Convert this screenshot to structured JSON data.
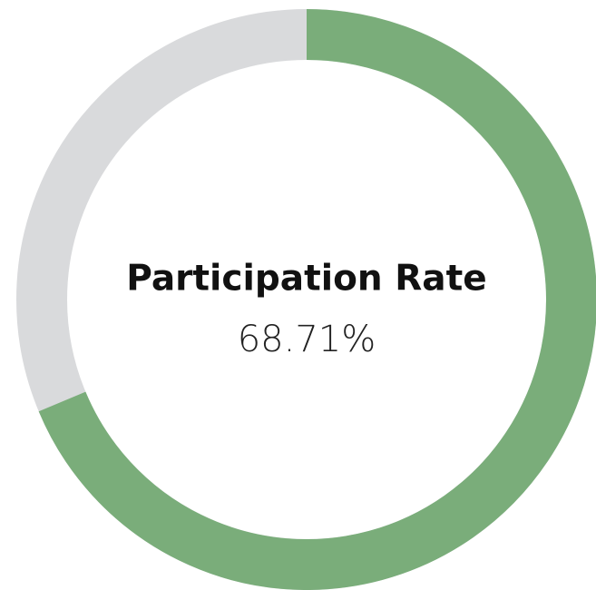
{
  "chart_data": {
    "type": "donut",
    "title": "Participation Rate",
    "values": [
      68.71
    ],
    "value_labels": [
      "68.71%"
    ],
    "ylim": [
      0,
      100
    ],
    "color": "#7aad7a",
    "track_color": "#d9dadc"
  }
}
